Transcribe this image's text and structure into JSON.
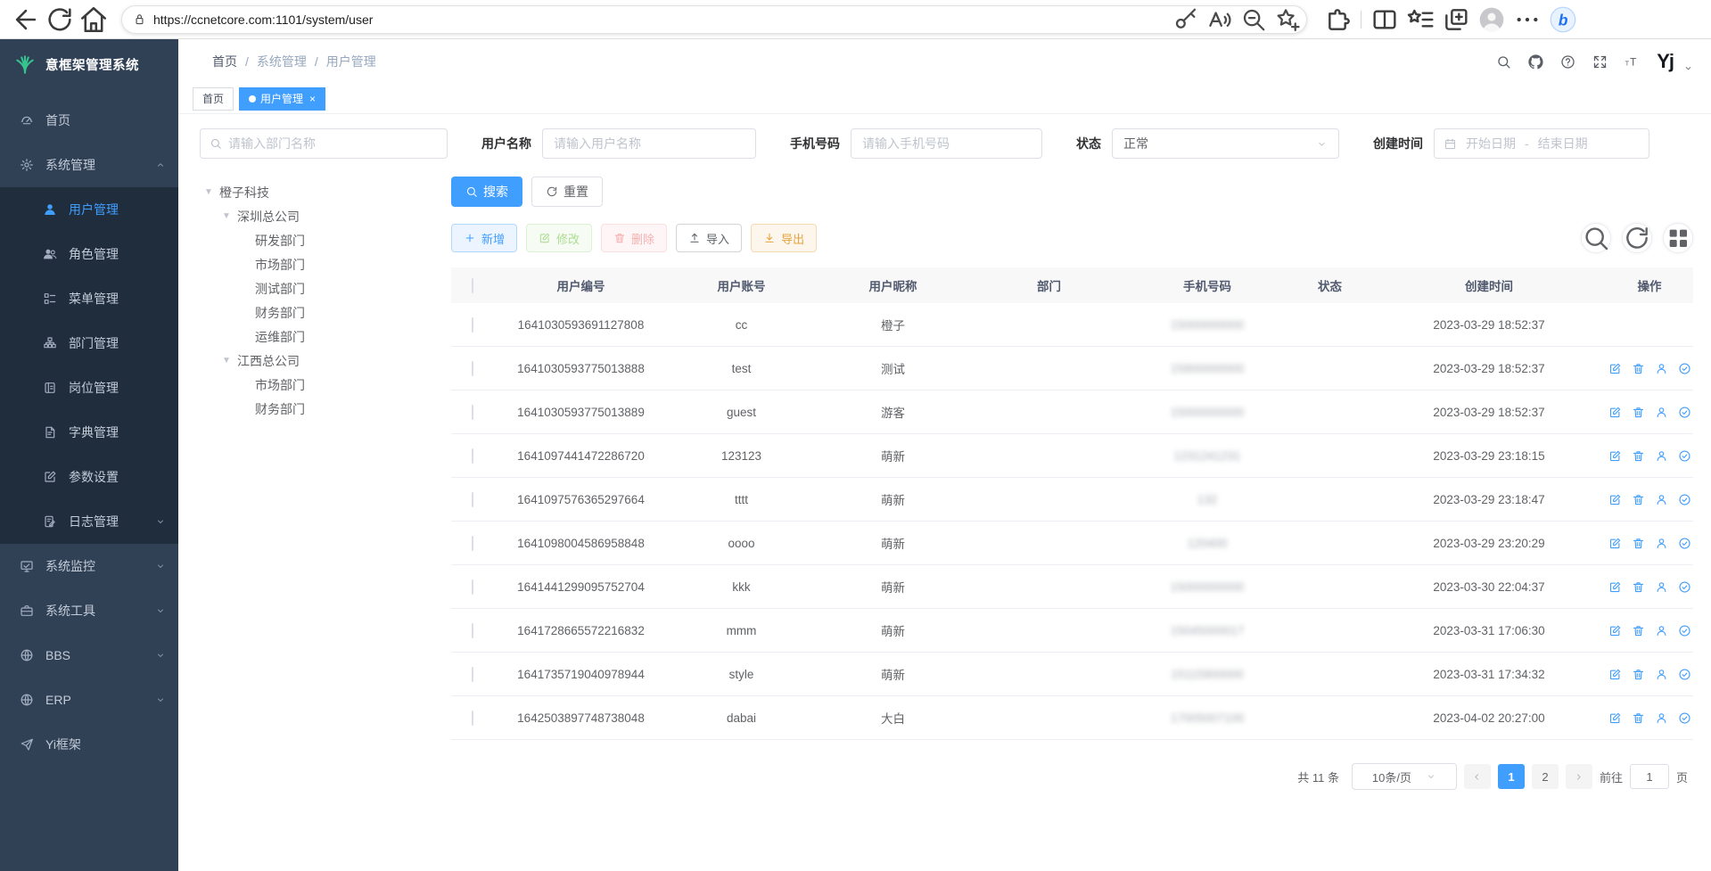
{
  "browser": {
    "url": "https://ccnetcore.com:1101/system/user",
    "left_icons": [
      "back-arrow-icon",
      "refresh-icon",
      "home-icon"
    ],
    "pill_icons": [
      "key-icon",
      "read-aloud-icon",
      "zoom-out-icon",
      "star-plus-icon"
    ],
    "right_icons": [
      "extensions-icon",
      "split-screen-icon",
      "favorites-icon",
      "collections-icon",
      "profile-icon",
      "more-icon",
      "copilot-icon"
    ]
  },
  "sidebar": {
    "logo_title": "意框架管理系统",
    "logo_icon": "plant-icon",
    "items": [
      {
        "label": "首页",
        "icon": "dashboard-icon"
      },
      {
        "label": "系统管理",
        "icon": "gear-icon",
        "arrow": "up"
      },
      {
        "label": "用户管理",
        "icon": "user-icon",
        "sub": true,
        "active": true
      },
      {
        "label": "角色管理",
        "icon": "users-icon",
        "sub": true
      },
      {
        "label": "菜单管理",
        "icon": "menu-tree-icon",
        "sub": true
      },
      {
        "label": "部门管理",
        "icon": "org-tree-icon",
        "sub": true
      },
      {
        "label": "岗位管理",
        "icon": "badge-icon",
        "sub": true
      },
      {
        "label": "字典管理",
        "icon": "dictionary-icon",
        "sub": true
      },
      {
        "label": "参数设置",
        "icon": "settings-edit-icon",
        "sub": true
      },
      {
        "label": "日志管理",
        "icon": "log-icon",
        "sub": true,
        "arrow": "down"
      },
      {
        "label": "系统监控",
        "icon": "monitor-icon",
        "arrow": "down"
      },
      {
        "label": "系统工具",
        "icon": "tools-icon",
        "arrow": "down"
      },
      {
        "label": "BBS",
        "icon": "globe-icon",
        "arrow": "down"
      },
      {
        "label": "ERP",
        "icon": "globe-icon",
        "arrow": "down"
      },
      {
        "label": "Yi框架",
        "icon": "send-icon"
      }
    ]
  },
  "header": {
    "breadcrumb": [
      "首页",
      "系统管理",
      "用户管理"
    ],
    "separator": "/",
    "right_icons": [
      "search-icon",
      "github-icon",
      "help-icon",
      "fullscreen-icon",
      "font-size-icon"
    ],
    "avatar_label": "Yj"
  },
  "tags": [
    {
      "label": "首页",
      "active": false
    },
    {
      "label": "用户管理",
      "active": true,
      "closable": true
    }
  ],
  "filters": {
    "dept_search_placeholder": "请输入部门名称",
    "username_label": "用户名称",
    "username_placeholder": "请输入用户名称",
    "phone_label": "手机号码",
    "phone_placeholder": "请输入手机号码",
    "status_label": "状态",
    "status_value": "正常",
    "created_label": "创建时间",
    "date_start_placeholder": "开始日期",
    "date_separator": "-",
    "date_end_placeholder": "结束日期"
  },
  "actions": {
    "search": "搜索",
    "reset": "重置",
    "add": "新增",
    "edit": "修改",
    "delete": "删除",
    "import": "导入",
    "export": "导出"
  },
  "tree": [
    {
      "label": "橙子科技",
      "level": 0,
      "caret": true
    },
    {
      "label": "深圳总公司",
      "level": 1,
      "caret": true
    },
    {
      "label": "研发部门",
      "level": 2
    },
    {
      "label": "市场部门",
      "level": 2
    },
    {
      "label": "测试部门",
      "level": 2
    },
    {
      "label": "财务部门",
      "level": 2
    },
    {
      "label": "运维部门",
      "level": 2
    },
    {
      "label": "江西总公司",
      "level": 1,
      "caret": true
    },
    {
      "label": "市场部门",
      "level": 2
    },
    {
      "label": "财务部门",
      "level": 2
    }
  ],
  "table": {
    "columns": [
      "用户编号",
      "用户账号",
      "用户昵称",
      "部门",
      "手机号码",
      "状态",
      "创建时间",
      "操作"
    ],
    "action_icons": [
      "edit-icon",
      "trash-icon",
      "person-icon",
      "check-circle-icon"
    ],
    "rows": [
      {
        "id": "1641030593691127808",
        "account": "cc",
        "nickname": "橙子",
        "dept": "",
        "phone": "15000000000",
        "phone_blurred": true,
        "status_on": true,
        "created": "2023-03-29 18:52:37",
        "has_actions": false
      },
      {
        "id": "1641030593775013888",
        "account": "test",
        "nickname": "测试",
        "dept": "",
        "phone": "15900000000",
        "phone_blurred": true,
        "status_on": true,
        "created": "2023-03-29 18:52:37",
        "has_actions": true
      },
      {
        "id": "1641030593775013889",
        "account": "guest",
        "nickname": "游客",
        "dept": "",
        "phone": "15000000000",
        "phone_blurred": true,
        "status_on": true,
        "created": "2023-03-29 18:52:37",
        "has_actions": true
      },
      {
        "id": "1641097441472286720",
        "account": "123123",
        "nickname": "萌新",
        "dept": "",
        "phone": "1231241231",
        "phone_blurred": true,
        "status_on": true,
        "created": "2023-03-29 23:18:15",
        "has_actions": true
      },
      {
        "id": "1641097576365297664",
        "account": "tttt",
        "nickname": "萌新",
        "dept": "",
        "phone": "132",
        "phone_blurred": true,
        "status_on": true,
        "created": "2023-03-29 23:18:47",
        "has_actions": true
      },
      {
        "id": "1641098004586958848",
        "account": "oooo",
        "nickname": "萌新",
        "dept": "",
        "phone": "120400",
        "phone_blurred": true,
        "status_on": true,
        "created": "2023-03-29 23:20:29",
        "has_actions": true
      },
      {
        "id": "1641441299095752704",
        "account": "kkk",
        "nickname": "萌新",
        "dept": "",
        "phone": "15000000000",
        "phone_blurred": true,
        "status_on": true,
        "created": "2023-03-30 22:04:37",
        "has_actions": true
      },
      {
        "id": "1641728665572216832",
        "account": "mmm",
        "nickname": "萌新",
        "dept": "",
        "phone": "15045000017",
        "phone_blurred": true,
        "status_on": true,
        "created": "2023-03-31 17:06:30",
        "has_actions": true
      },
      {
        "id": "1641735719040978944",
        "account": "style",
        "nickname": "萌新",
        "dept": "",
        "phone": "15115900000",
        "phone_blurred": true,
        "status_on": true,
        "created": "2023-03-31 17:34:32",
        "has_actions": true
      },
      {
        "id": "1642503897748738048",
        "account": "dabai",
        "nickname": "大白",
        "dept": "",
        "phone": "17005007100",
        "phone_blurred": true,
        "status_on": true,
        "created": "2023-04-02 20:27:00",
        "has_actions": true
      }
    ]
  },
  "pagination": {
    "total_text": "共 11 条",
    "page_size": "10条/页",
    "pages": [
      "1",
      "2"
    ],
    "active_page": "1",
    "goto_label": "前往",
    "goto_value": "1",
    "page_unit": "页"
  },
  "colors": {
    "primary": "#409eff",
    "sidebar_bg": "#304156",
    "submenu_bg": "#1f2d3d",
    "logo_green": "#36c58f",
    "success": "#67c23a",
    "danger": "#f56c6c",
    "warning": "#e6a23c"
  }
}
